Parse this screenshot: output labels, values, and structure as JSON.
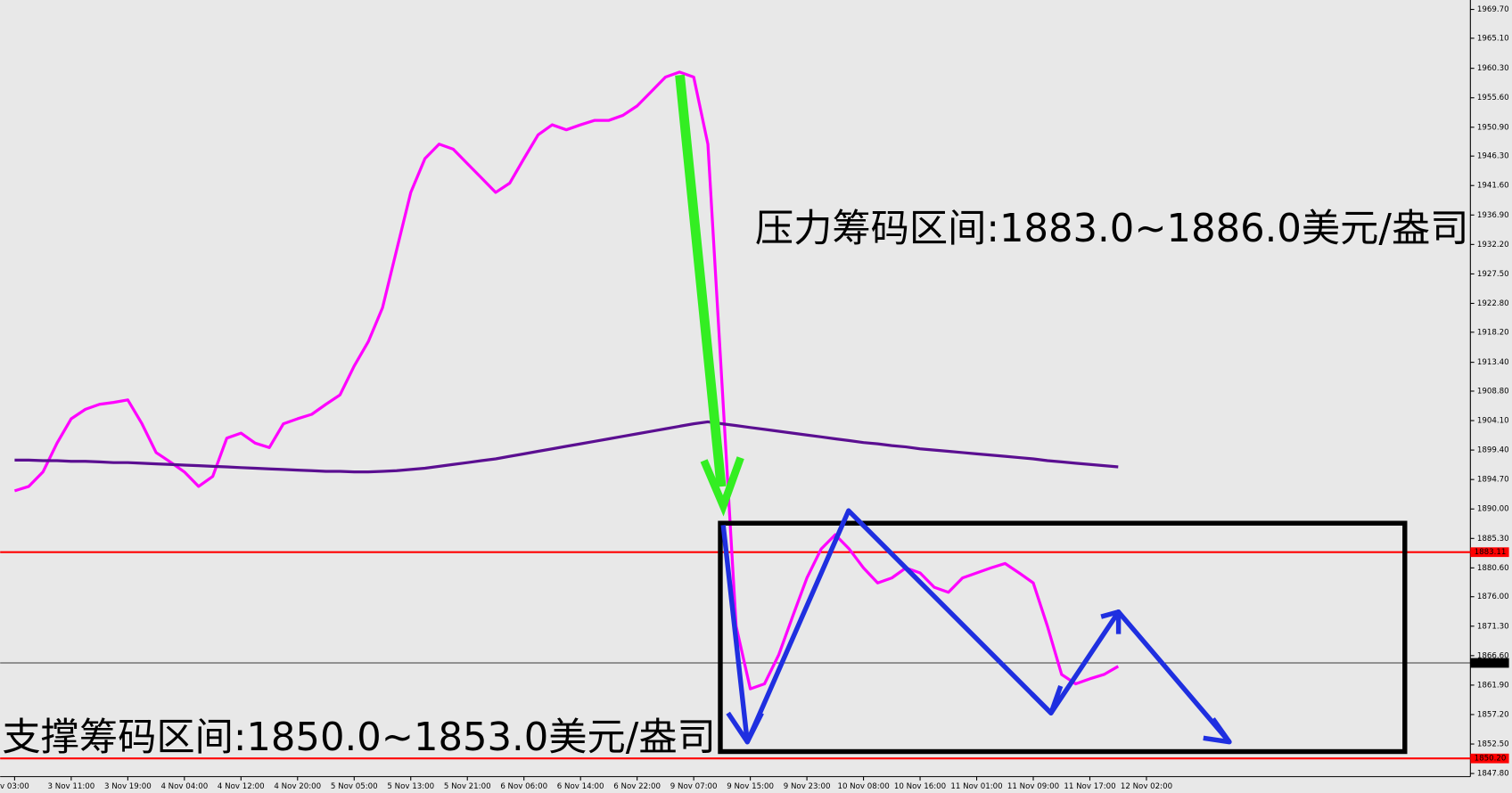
{
  "chart_data": {
    "type": "line",
    "annotations": [
      "压力筹码区间:1883.0~1886.0美元/盎司",
      "支撑筹码区间:1850.0~1853.0美元/盎司"
    ],
    "categories": [
      "v 03:00",
      null,
      null,
      null,
      "3 Nov 11:00",
      null,
      null,
      null,
      "3 Nov 19:00",
      null,
      null,
      null,
      "4 Nov 04:00",
      null,
      null,
      null,
      "4 Nov 12:00",
      null,
      null,
      null,
      "4 Nov 20:00",
      null,
      null,
      null,
      "5 Nov 05:00",
      null,
      null,
      null,
      "5 Nov 13:00",
      null,
      null,
      null,
      "5 Nov 21:00",
      null,
      null,
      null,
      "6 Nov 06:00",
      null,
      null,
      null,
      "6 Nov 14:00",
      null,
      null,
      null,
      "6 Nov 22:00",
      null,
      null,
      null,
      "9 Nov 07:00",
      null,
      null,
      null,
      "9 Nov 15:00",
      null,
      null,
      null,
      "9 Nov 23:00",
      null,
      null,
      null,
      "10 Nov 08:00",
      null,
      null,
      null,
      "10 Nov 16:00",
      null,
      null,
      null,
      "11 Nov 01:00",
      null,
      null,
      null,
      "11 Nov 09:00",
      null,
      null,
      null,
      "11 Nov 17:00",
      null,
      null,
      null,
      "12 Nov 02:00"
    ],
    "series": [
      {
        "color": "#ff00ff",
        "values": [
          1892.9,
          1893.6,
          1895.9,
          1900.5,
          1904.4,
          1905.9,
          1906.7,
          1907.0,
          1907.4,
          1903.6,
          1899.0,
          1897.5,
          1895.9,
          1893.6,
          1895.2,
          1901.3,
          1902.1,
          1900.5,
          1899.8,
          1903.6,
          1904.4,
          1905.1,
          1906.7,
          1908.2,
          1912.8,
          1916.7,
          1922.1,
          1931.3,
          1940.5,
          1945.9,
          1948.2,
          1947.4,
          1945.1,
          1942.8,
          1940.5,
          1942.0,
          1945.9,
          1949.7,
          1951.3,
          1950.5,
          1951.3,
          1952.0,
          1952.0,
          1952.8,
          1954.3,
          1956.6,
          1958.9,
          1959.7,
          1958.9,
          1948.2,
          1909.8,
          1871.3,
          1861.3,
          1862.1,
          1866.7,
          1872.9,
          1879.0,
          1883.6,
          1885.9,
          1883.6,
          1880.6,
          1878.2,
          1879.0,
          1880.6,
          1879.8,
          1877.5,
          1876.7,
          1879.0,
          1879.8,
          1880.6,
          1881.3,
          1879.8,
          1878.2,
          1871.3,
          1863.6,
          1862.1,
          1862.9,
          1863.6,
          1864.9,
          null,
          null
        ]
      },
      {
        "color": "#5b0f91",
        "values": [
          1897.8,
          1897.8,
          1897.7,
          1897.7,
          1897.6,
          1897.6,
          1897.5,
          1897.4,
          1897.4,
          1897.3,
          1897.2,
          1897.1,
          1897.0,
          1896.9,
          1896.8,
          1896.7,
          1896.6,
          1896.5,
          1896.4,
          1896.3,
          1896.2,
          1896.1,
          1896.0,
          1896.0,
          1895.9,
          1895.9,
          1896.0,
          1896.1,
          1896.3,
          1896.5,
          1896.8,
          1897.1,
          1897.4,
          1897.7,
          1898.0,
          1898.4,
          1898.8,
          1899.2,
          1899.6,
          1900.0,
          1900.4,
          1900.8,
          1901.2,
          1901.6,
          1902.0,
          1902.4,
          1902.8,
          1903.2,
          1903.6,
          1903.9,
          1903.6,
          1903.3,
          1903.0,
          1902.7,
          1902.4,
          1902.1,
          1901.8,
          1901.5,
          1901.2,
          1900.9,
          1900.6,
          1900.4,
          1900.1,
          1899.9,
          1899.6,
          1899.4,
          1899.2,
          1899.0,
          1898.8,
          1898.6,
          1898.4,
          1898.2,
          1898.0,
          1897.7,
          1897.5,
          1897.3,
          1897.1,
          1896.9,
          1896.7,
          null,
          null
        ]
      }
    ],
    "levels": [
      {
        "value": 1883.11,
        "label": "1883.11",
        "color": "#ff0000"
      },
      {
        "value": 1850.2,
        "label": "1850.20",
        "color": "#ff0000"
      },
      {
        "value": 1865.44,
        "label": "1865.44",
        "color": "#000000"
      }
    ],
    "ylim": [
      1847.3,
      1971.2
    ],
    "yticks": [
      {
        "value": 1969.7,
        "label": "1969.70"
      },
      {
        "value": 1965.1,
        "label": "1965.10"
      },
      {
        "value": 1960.3,
        "label": "1960.30"
      },
      {
        "value": 1955.6,
        "label": "1955.60"
      },
      {
        "value": 1950.9,
        "label": "1950.90"
      },
      {
        "value": 1946.3,
        "label": "1946.30"
      },
      {
        "value": 1941.6,
        "label": "1941.60"
      },
      {
        "value": 1936.9,
        "label": "1936.90"
      },
      {
        "value": 1932.2,
        "label": "1932.20"
      },
      {
        "value": 1927.5,
        "label": "1927.50"
      },
      {
        "value": 1922.8,
        "label": "1922.80"
      },
      {
        "value": 1918.2,
        "label": "1918.20"
      },
      {
        "value": 1913.4,
        "label": "1913.40"
      },
      {
        "value": 1908.8,
        "label": "1908.80"
      },
      {
        "value": 1904.1,
        "label": "1904.10"
      },
      {
        "value": 1899.4,
        "label": "1899.40"
      },
      {
        "value": 1894.7,
        "label": "1894.70"
      },
      {
        "value": 1890.0,
        "label": "1890.00"
      },
      {
        "value": 1885.3,
        "label": "1885.30"
      },
      {
        "value": 1880.6,
        "label": "1880.60"
      },
      {
        "value": 1876.0,
        "label": "1876.00"
      },
      {
        "value": 1871.3,
        "label": "1871.30"
      },
      {
        "value": 1866.6,
        "label": "1866.60"
      },
      {
        "value": 1861.9,
        "label": "1861.90"
      },
      {
        "value": 1857.2,
        "label": "1857.20"
      },
      {
        "value": 1852.5,
        "label": "1852.50"
      },
      {
        "value": 1847.8,
        "label": "1847.80"
      }
    ]
  }
}
